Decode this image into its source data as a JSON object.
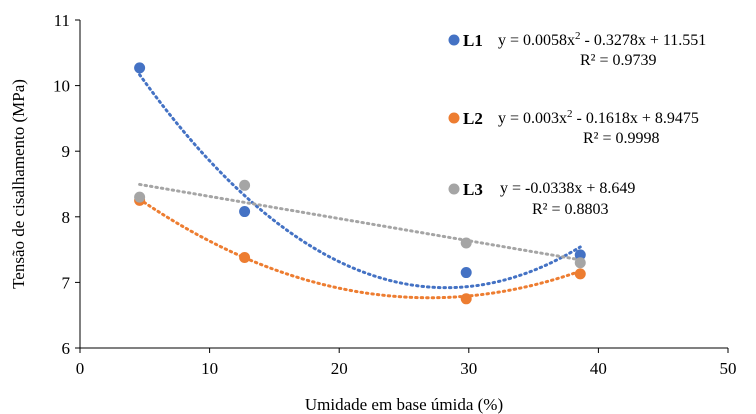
{
  "chart_data": {
    "type": "scatter",
    "title": "",
    "xlabel": "Umidade em base úmida (%)",
    "ylabel": "Tensão de cisalhamento (MPa)",
    "xlim": [
      0,
      50
    ],
    "ylim": [
      6,
      11
    ],
    "xticks": [
      "0",
      "10",
      "20",
      "30",
      "40",
      "50"
    ],
    "yticks": [
      "6",
      "7",
      "8",
      "9",
      "10",
      "11"
    ],
    "grid": false,
    "legend_position": "right",
    "series": [
      {
        "name": "L1",
        "color": "#4472C4",
        "x": [
          4.6,
          12.7,
          29.8,
          38.6
        ],
        "y": [
          10.27,
          8.08,
          7.15,
          7.42
        ],
        "trendline": {
          "type": "poly2",
          "coef": [
            0.0058,
            -0.3278,
            11.551
          ],
          "range": [
            4.6,
            38.6
          ]
        },
        "equation": {
          "pre": "y = 0.0058x",
          "sup": "2",
          "post": " - 0.3278x + 11.551"
        },
        "r2": "R² = 0.9739"
      },
      {
        "name": "L2",
        "color": "#ED7D31",
        "x": [
          4.6,
          12.7,
          29.8,
          38.6
        ],
        "y": [
          8.25,
          7.38,
          6.75,
          7.13
        ],
        "trendline": {
          "type": "poly2",
          "coef": [
            0.003,
            -0.1618,
            8.9475
          ],
          "range": [
            4.6,
            38.6
          ]
        },
        "equation": {
          "pre": "y = 0.003x",
          "sup": "2",
          "post": " - 0.1618x + 8.9475"
        },
        "r2": "R² = 0.9998"
      },
      {
        "name": "L3",
        "color": "#A5A5A5",
        "x": [
          4.6,
          12.7,
          29.8,
          38.6
        ],
        "y": [
          8.3,
          8.48,
          7.6,
          7.3
        ],
        "trendline": {
          "type": "linear",
          "coef": [
            -0.0338,
            8.649
          ],
          "range": [
            4.6,
            38.6
          ]
        },
        "equation": {
          "pre": "y = -0.0338x + 8.649",
          "sup": "",
          "post": ""
        },
        "r2": "R² = 0.8803"
      }
    ]
  }
}
